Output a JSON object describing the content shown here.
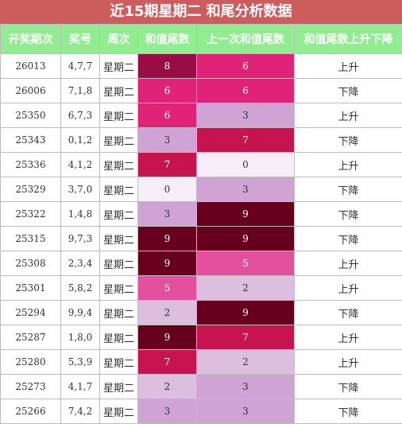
{
  "title": "近15期星期二 和尾分析数据",
  "headers": [
    "开奖期次",
    "奖号",
    "周次",
    "和值尾数",
    "上一次和值尾数",
    "和值尾数上升下降"
  ],
  "colors": {
    "title_bg": "#cd5c5c",
    "header_bg": "#90ee90",
    "scale": {
      "0": "#f5eef6",
      "2": "#dcbfdf",
      "3": "#cfa3d4",
      "5": "#e3519e",
      "6": "#e02278",
      "7": "#c7134f",
      "8": "#980d43",
      "9": "#67001f"
    }
  },
  "rows": [
    {
      "period": "26013",
      "numbers": "4,7,7",
      "week": "星期二",
      "tail": "8",
      "prev_tail": "6",
      "trend": "上升"
    },
    {
      "period": "26006",
      "numbers": "7,1,8",
      "week": "星期二",
      "tail": "6",
      "prev_tail": "6",
      "trend": "下降"
    },
    {
      "period": "25350",
      "numbers": "6,7,3",
      "week": "星期二",
      "tail": "6",
      "prev_tail": "3",
      "trend": "上升"
    },
    {
      "period": "25343",
      "numbers": "0,1,2",
      "week": "星期二",
      "tail": "3",
      "prev_tail": "7",
      "trend": "下降"
    },
    {
      "period": "25336",
      "numbers": "4,1,2",
      "week": "星期二",
      "tail": "7",
      "prev_tail": "0",
      "trend": "上升"
    },
    {
      "period": "25329",
      "numbers": "3,7,0",
      "week": "星期二",
      "tail": "0",
      "prev_tail": "3",
      "trend": "下降"
    },
    {
      "period": "25322",
      "numbers": "1,4,8",
      "week": "星期二",
      "tail": "3",
      "prev_tail": "9",
      "trend": "下降"
    },
    {
      "period": "25315",
      "numbers": "9,7,3",
      "week": "星期二",
      "tail": "9",
      "prev_tail": "9",
      "trend": "下降"
    },
    {
      "period": "25308",
      "numbers": "2,3,4",
      "week": "星期二",
      "tail": "9",
      "prev_tail": "5",
      "trend": "上升"
    },
    {
      "period": "25301",
      "numbers": "5,8,2",
      "week": "星期二",
      "tail": "5",
      "prev_tail": "2",
      "trend": "上升"
    },
    {
      "period": "25294",
      "numbers": "9,9,4",
      "week": "星期二",
      "tail": "2",
      "prev_tail": "9",
      "trend": "下降"
    },
    {
      "period": "25287",
      "numbers": "1,8,0",
      "week": "星期二",
      "tail": "9",
      "prev_tail": "7",
      "trend": "上升"
    },
    {
      "period": "25280",
      "numbers": "5,3,9",
      "week": "星期二",
      "tail": "7",
      "prev_tail": "2",
      "trend": "上升"
    },
    {
      "period": "25273",
      "numbers": "4,1,7",
      "week": "星期二",
      "tail": "2",
      "prev_tail": "3",
      "trend": "下降"
    },
    {
      "period": "25266",
      "numbers": "7,4,2",
      "week": "星期二",
      "tail": "3",
      "prev_tail": "3",
      "trend": "下降"
    }
  ]
}
